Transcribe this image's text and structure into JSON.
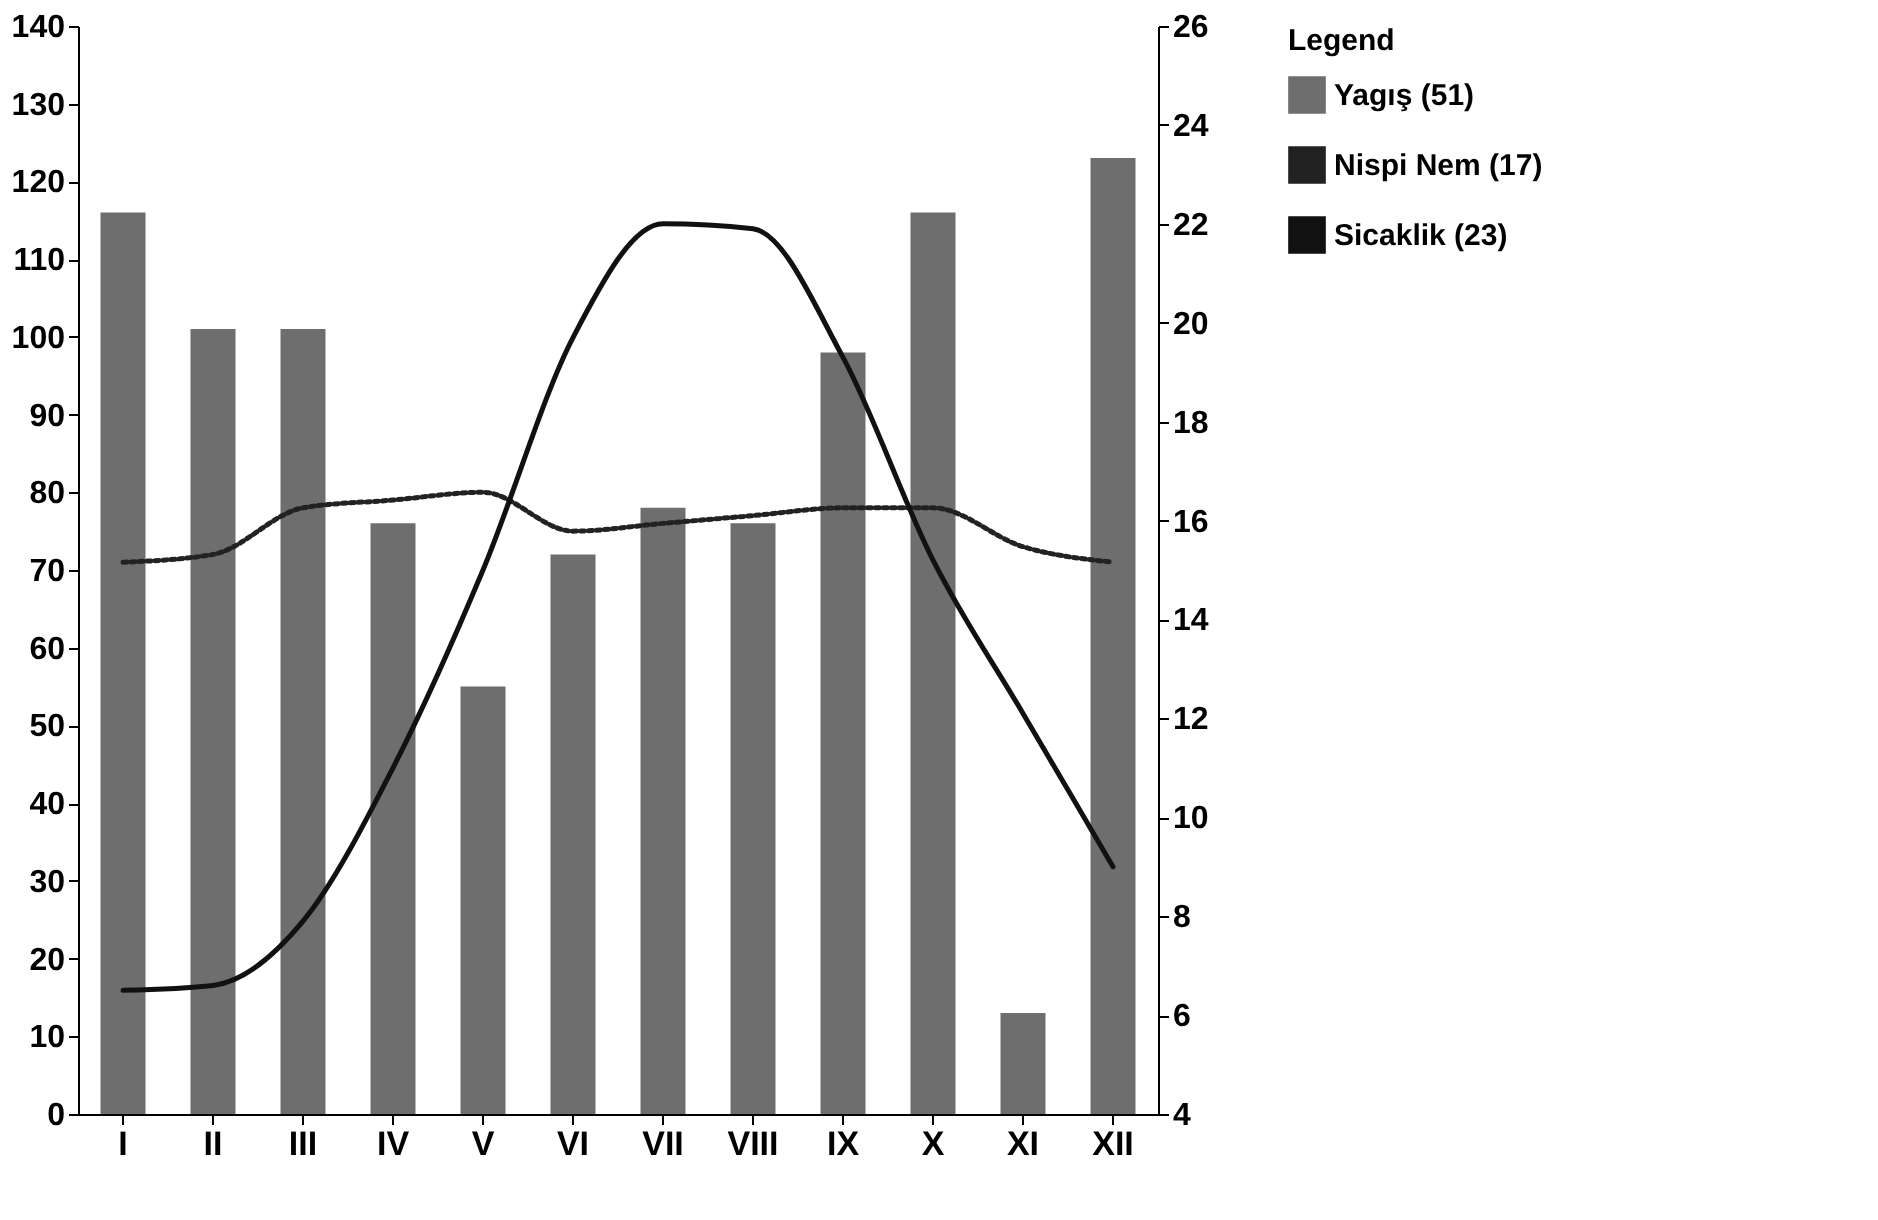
{
  "chart_data": {
    "type": "bar",
    "categories": [
      "I",
      "II",
      "III",
      "IV",
      "V",
      "VI",
      "VII",
      "VIII",
      "IX",
      "X",
      "XI",
      "XII"
    ],
    "legend_title": "Legend",
    "legend": "top right",
    "grid": false,
    "ylim": [
      0,
      140
    ],
    "yticks": [
      0,
      10,
      20,
      30,
      40,
      50,
      60,
      70,
      80,
      90,
      100,
      110,
      120,
      130,
      140
    ],
    "y2lim": [
      4,
      26
    ],
    "y2ticks": [
      4,
      6,
      8,
      10,
      12,
      14,
      16,
      18,
      20,
      22,
      24,
      26
    ],
    "series": [
      {
        "name": "Yagış (51)",
        "color": "#6e6e6e",
        "values": [
          116,
          101,
          101,
          76,
          55,
          72,
          78,
          76,
          98,
          116,
          13,
          123
        ]
      },
      {
        "name": "Nispi Nem (17)",
        "type": "line",
        "line_style": "dotted",
        "color": "#222222",
        "values": [
          71,
          72,
          78,
          79,
          80,
          75,
          76,
          77,
          78,
          78,
          73,
          71
        ]
      },
      {
        "name": "Sicaklik (23)",
        "type": "line",
        "line_style": "solid",
        "axis": "y2",
        "color": "#111111",
        "values": [
          6.5,
          6.6,
          7.9,
          11,
          15,
          19.7,
          22,
          21.9,
          19.3,
          15.2,
          12.1,
          9
        ]
      }
    ]
  }
}
